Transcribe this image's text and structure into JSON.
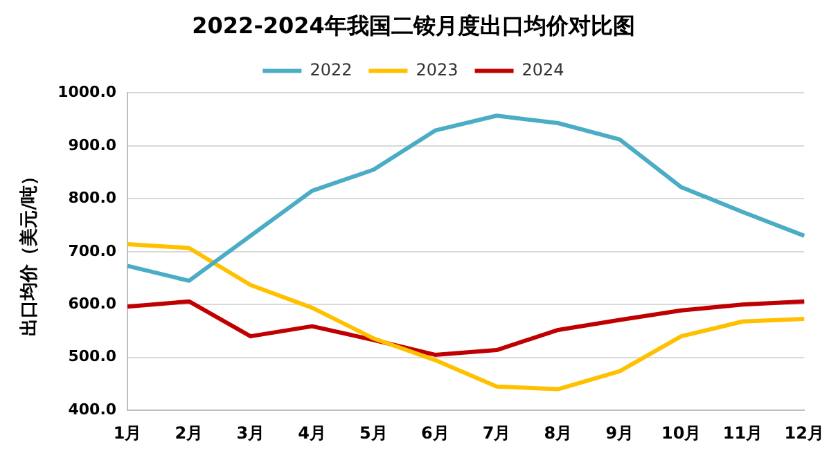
{
  "chart_data": {
    "type": "line",
    "title": "2022-2024年我国二铵月度出口均价对比图",
    "ylabel": "出口均价（美元/吨）",
    "categories": [
      "1月",
      "2月",
      "3月",
      "4月",
      "5月",
      "6月",
      "7月",
      "8月",
      "9月",
      "10月",
      "11月",
      "12月"
    ],
    "series": [
      {
        "name": "2022",
        "color": "#4bacc6",
        "values": [
          673,
          645,
          730,
          815,
          855,
          929,
          957,
          943,
          912,
          822,
          775,
          730
        ]
      },
      {
        "name": "2023",
        "color": "#ffc000",
        "values": [
          714,
          707,
          637,
          594,
          536,
          495,
          445,
          440,
          474,
          540,
          568,
          573
        ]
      },
      {
        "name": "2024",
        "color": "#c00000",
        "values": [
          596,
          606,
          540,
          559,
          533,
          505,
          514,
          552,
          571,
          589,
          600,
          606
        ]
      }
    ],
    "ylim": [
      400,
      1000
    ],
    "yticks": [
      {
        "value": 400,
        "label": "400.0"
      },
      {
        "value": 500,
        "label": "500.0"
      },
      {
        "value": 600,
        "label": "600.0"
      },
      {
        "value": 700,
        "label": "700.0"
      },
      {
        "value": 800,
        "label": "800.0"
      },
      {
        "value": 900,
        "label": "900.0"
      },
      {
        "value": 1000,
        "label": "1000.0"
      }
    ],
    "grid": "y",
    "legend": "top",
    "marker": "none",
    "line_style": "solid"
  }
}
